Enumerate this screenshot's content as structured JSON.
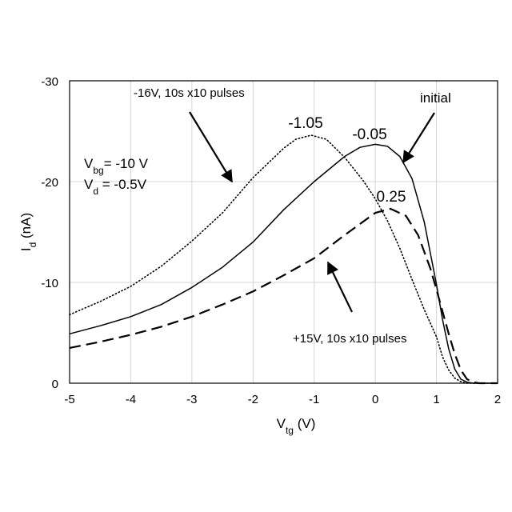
{
  "chart_data": {
    "type": "line",
    "title": "",
    "xlabel": {
      "base": "V",
      "sub": "tg",
      "unit": " (V)"
    },
    "ylabel": {
      "base": "I",
      "sub": "d",
      "unit": " (nA)"
    },
    "xlim": [
      -5,
      2
    ],
    "ylim": [
      0,
      -30
    ],
    "x_ticks": [
      -5,
      -4,
      -3,
      -2,
      -1,
      0,
      1,
      2
    ],
    "y_ticks": [
      0,
      -10,
      -20,
      -30
    ],
    "x_tick_labels": [
      "-5",
      "-4",
      "-3",
      "-2",
      "-1",
      "0",
      "1",
      "2"
    ],
    "y_tick_labels": [
      "0",
      "-10",
      "-20",
      "-30"
    ],
    "grid": true,
    "series": [
      {
        "name": "initial",
        "style": "solid",
        "x": [
          -5,
          -4.5,
          -4,
          -3.5,
          -3,
          -2.5,
          -2,
          -1.5,
          -1,
          -0.5,
          -0.25,
          0,
          0.2,
          0.4,
          0.6,
          0.8,
          1.0,
          1.1,
          1.2,
          1.3,
          1.4,
          1.5,
          1.6,
          1.7,
          1.8,
          2.0
        ],
        "y": [
          -4.9,
          -5.7,
          -6.6,
          -7.8,
          -9.5,
          -11.5,
          -14.0,
          -17.2,
          -20.0,
          -22.5,
          -23.4,
          -23.7,
          -23.5,
          -22.5,
          -20.3,
          -16.0,
          -9.8,
          -6.3,
          -3.4,
          -1.4,
          -0.4,
          -0.1,
          0,
          0,
          0,
          0
        ]
      },
      {
        "name": "-16V, 10s x10 pulses",
        "style": "dotted",
        "x": [
          -5,
          -4.5,
          -4,
          -3.5,
          -3,
          -2.5,
          -2,
          -1.5,
          -1.3,
          -1.05,
          -0.8,
          -0.5,
          -0.2,
          0,
          0.2,
          0.4,
          0.6,
          0.8,
          1.0,
          1.1,
          1.2,
          1.3,
          1.4,
          1.5,
          1.7,
          2.0
        ],
        "y": [
          -6.8,
          -8.1,
          -9.6,
          -11.6,
          -14.1,
          -16.9,
          -20.4,
          -23.3,
          -24.2,
          -24.6,
          -24.2,
          -22.4,
          -20.1,
          -18.3,
          -16.1,
          -13.4,
          -10.3,
          -7.3,
          -4.6,
          -2.6,
          -1.3,
          -0.5,
          -0.15,
          0,
          0,
          0
        ]
      },
      {
        "name": "+15V, 10s x10 pulses",
        "style": "dashed",
        "x": [
          -5,
          -4.5,
          -4,
          -3.5,
          -3,
          -2.5,
          -2,
          -1.5,
          -1,
          -0.5,
          0,
          0.25,
          0.5,
          0.7,
          0.9,
          1.0,
          1.1,
          1.2,
          1.3,
          1.4,
          1.5,
          1.6,
          1.7,
          1.8,
          2.0
        ],
        "y": [
          -3.5,
          -4.1,
          -4.8,
          -5.6,
          -6.6,
          -7.8,
          -9.1,
          -10.7,
          -12.4,
          -14.7,
          -16.9,
          -17.3,
          -16.6,
          -14.7,
          -11.4,
          -9.3,
          -7.1,
          -4.9,
          -2.9,
          -1.3,
          -0.4,
          -0.1,
          0,
          0,
          0
        ]
      }
    ],
    "annotations": {
      "pulses_neg": "-16V, 10s x10 pulses",
      "pulses_pos": "+15V, 10s x10 pulses",
      "initial": "initial",
      "peak_neg": "-1.05",
      "peak_initial": "-0.05",
      "peak_pos": "0.25",
      "vbg": {
        "base": "V",
        "sub": "bg",
        "rest": "= -10 V"
      },
      "vd": {
        "base": "V",
        "sub": "d",
        "rest": " = -0.5V"
      }
    }
  }
}
